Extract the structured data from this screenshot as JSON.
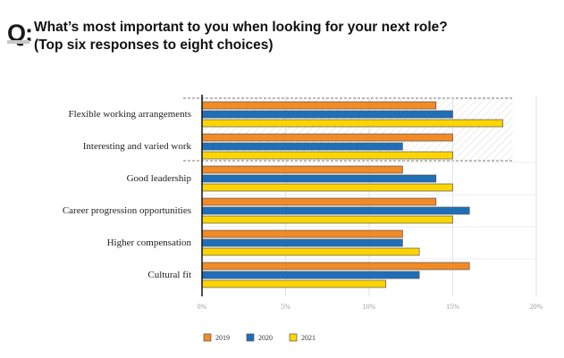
{
  "header": {
    "q_label": "Q:",
    "title_line1": "What’s most important to you when looking for your next role?",
    "title_line2": "(Top six responses to eight choices)"
  },
  "chart_data": {
    "type": "bar",
    "orientation": "horizontal",
    "title": "What’s most important to you when looking for your next role? (Top six responses to eight choices)",
    "categories": [
      "Flexible working arrangements",
      "Interesting and varied work",
      "Good leadership",
      "Career progression opportunities",
      "Higher compensation",
      "Cultural fit"
    ],
    "series": [
      {
        "name": "2019",
        "color": "#f28a25",
        "values": [
          14,
          15,
          12,
          14,
          12,
          16
        ]
      },
      {
        "name": "2020",
        "color": "#1f6fb8",
        "values": [
          15,
          12,
          14,
          16,
          12,
          13
        ]
      },
      {
        "name": "2021",
        "color": "#ffd500",
        "values": [
          18,
          15,
          15,
          15,
          13,
          11
        ]
      }
    ],
    "xlim": [
      0,
      20
    ],
    "xticks": [
      0,
      5,
      10,
      15,
      20
    ],
    "xtick_labels": [
      "0%",
      "5%",
      "10%",
      "15%",
      "20%"
    ],
    "highlighted_categories": [
      "Flexible working arrangements",
      "Interesting and varied work"
    ],
    "grid": true,
    "legend_placement": "bottom-left",
    "xlabel": "",
    "ylabel": ""
  }
}
